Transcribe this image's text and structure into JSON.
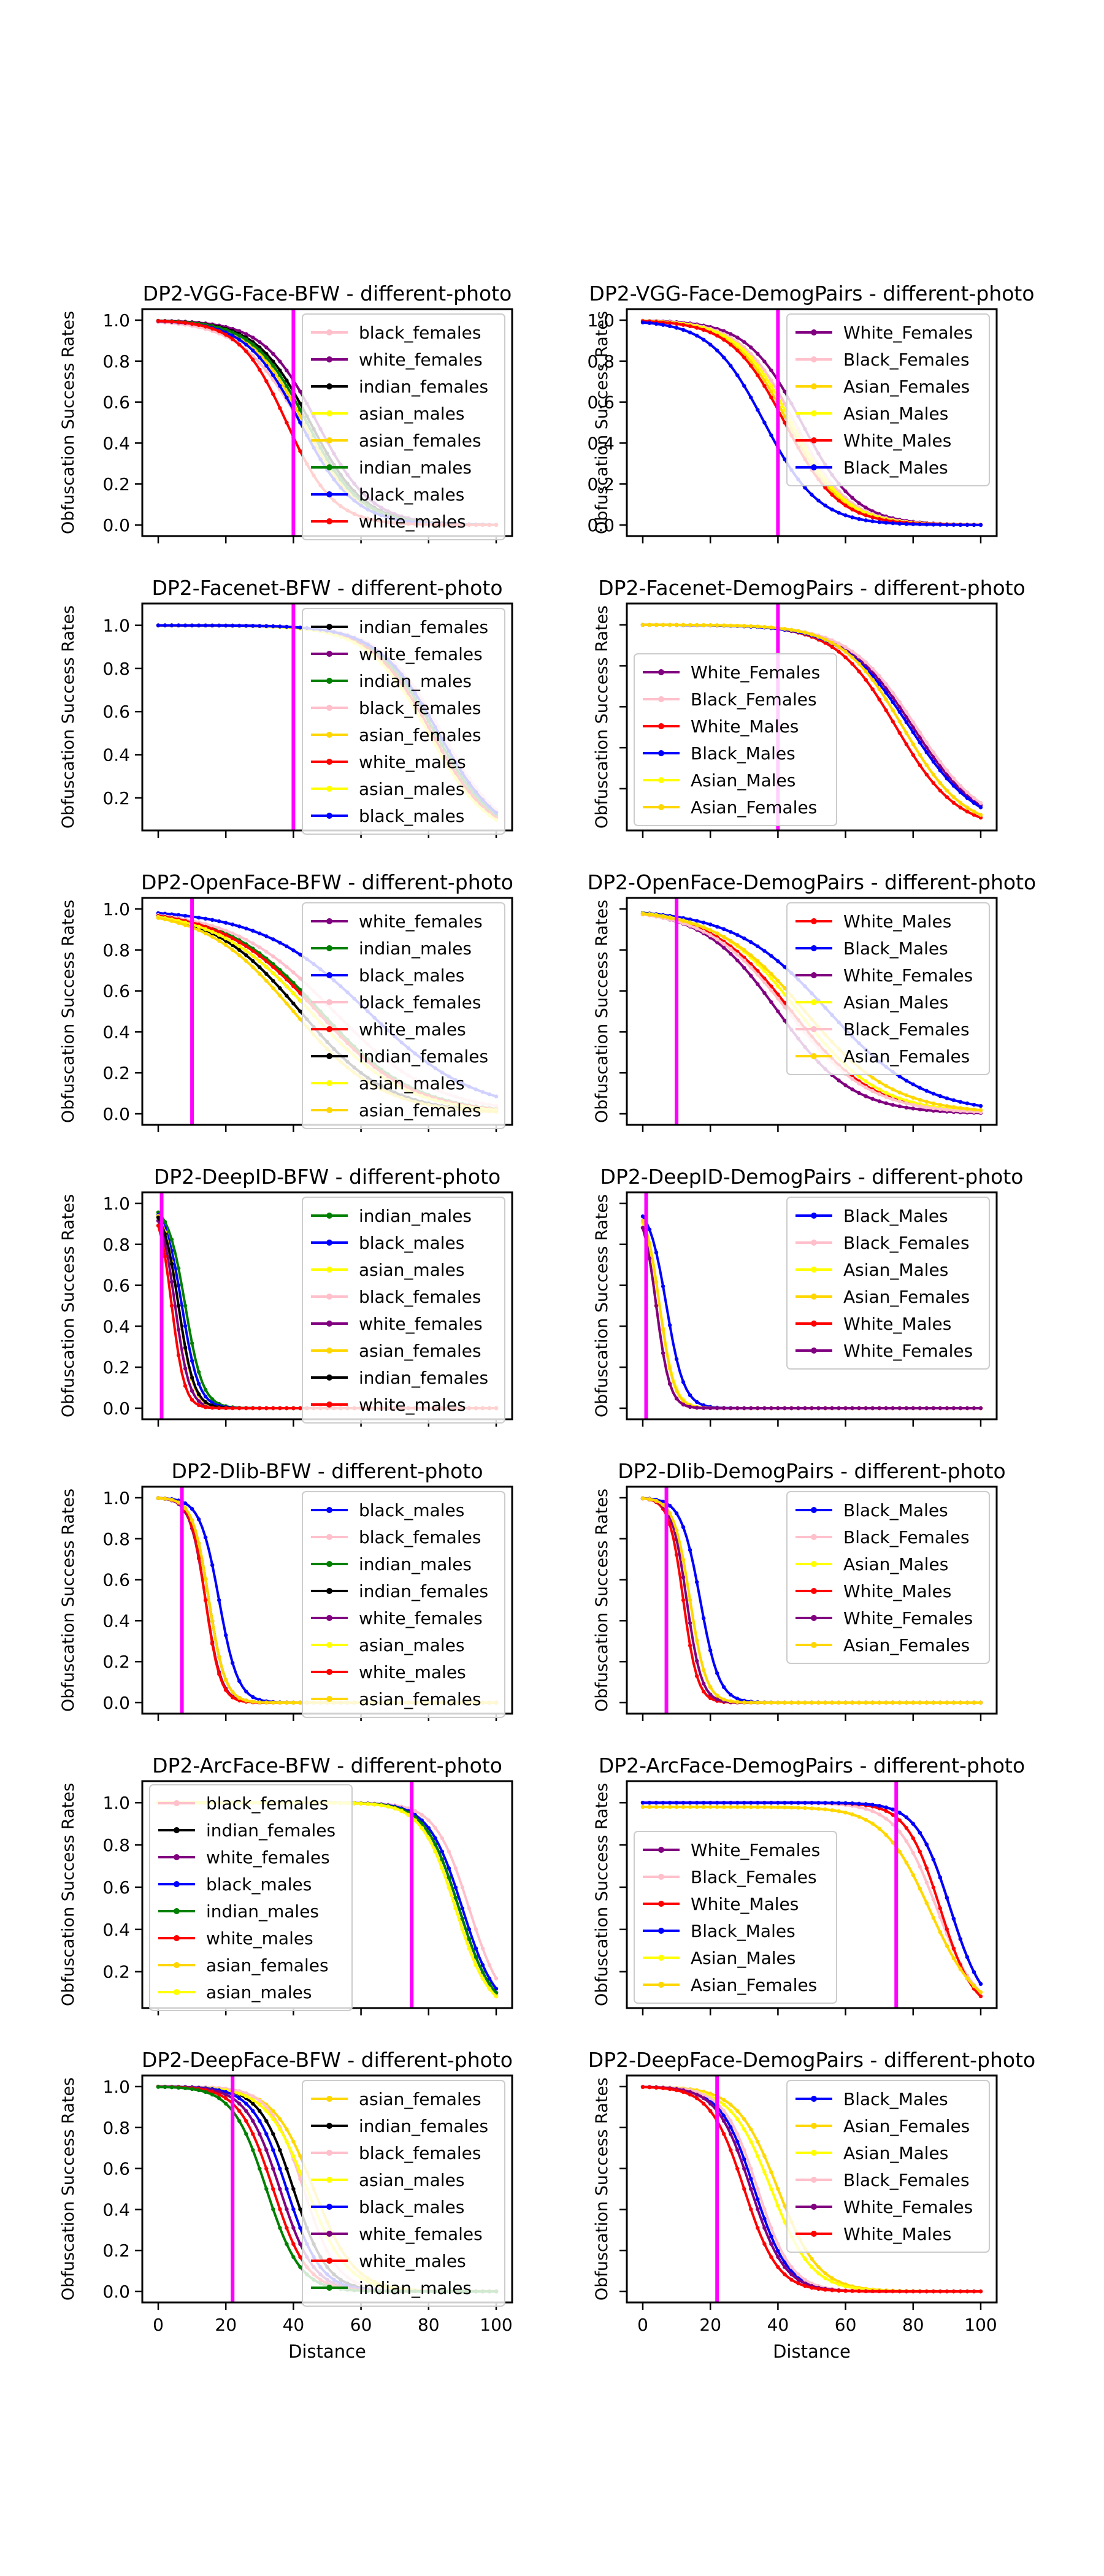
{
  "figure": {
    "xlabel": "Distance",
    "ylabel": "Obfuscation Success Rates"
  },
  "series_colors": {
    "black_females": "#ffc0cb",
    "white_females": "#800080",
    "indian_females": "#000000",
    "asian_males": "#ffff00",
    "asian_females": "#ffd700",
    "indian_males": "#008000",
    "black_males": "#0000ff",
    "white_males": "#ff0000",
    "White_Females": "#800080",
    "Black_Females": "#ffc0cb",
    "Asian_Females": "#ffd700",
    "Asian_Males": "#ffff00",
    "White_Males": "#ff0000",
    "Black_Males": "#0000ff"
  },
  "chart_data": [
    {
      "type": "line",
      "title": "DP2-VGG-Face-BFW - different-photo",
      "xlim": [
        0,
        100
      ],
      "ylim": [
        0,
        1
      ],
      "yticks": [
        "0.0",
        "0.2",
        "0.4",
        "0.6",
        "0.8",
        "1.0"
      ],
      "xticks": [
        "0",
        "20",
        "40",
        "60",
        "80",
        "100"
      ],
      "threshold_x": 40,
      "series": [
        {
          "name": "black_females",
          "mid": 42,
          "k": 9,
          "lo": 0,
          "hi": 1
        },
        {
          "name": "white_females",
          "mid": 47,
          "k": 8,
          "lo": 0,
          "hi": 1
        },
        {
          "name": "indian_females",
          "mid": 45,
          "k": 8,
          "lo": 0,
          "hi": 1
        },
        {
          "name": "asian_males",
          "mid": 44,
          "k": 8,
          "lo": 0,
          "hi": 1
        },
        {
          "name": "asian_females",
          "mid": 43,
          "k": 8,
          "lo": 0,
          "hi": 1
        },
        {
          "name": "indian_males",
          "mid": 44,
          "k": 8,
          "lo": 0,
          "hi": 1
        },
        {
          "name": "black_males",
          "mid": 42,
          "k": 8,
          "lo": 0,
          "hi": 1
        },
        {
          "name": "white_males",
          "mid": 38,
          "k": 7,
          "lo": 0,
          "hi": 1
        }
      ]
    },
    {
      "type": "line",
      "title": "DP2-VGG-Face-DemogPairs - different-photo",
      "xlim": [
        0,
        100
      ],
      "ylim": [
        0,
        1
      ],
      "yticks": [
        "0.0",
        "0.2",
        "0.4",
        "0.6",
        "0.8",
        "1.0"
      ],
      "xticks": [
        "0",
        "20",
        "40",
        "60",
        "80",
        "100"
      ],
      "threshold_x": 40,
      "series": [
        {
          "name": "White_Females",
          "mid": 47,
          "k": 8,
          "lo": 0,
          "hi": 1
        },
        {
          "name": "Black_Females",
          "mid": 45,
          "k": 8,
          "lo": 0,
          "hi": 1
        },
        {
          "name": "Asian_Females",
          "mid": 43,
          "k": 8,
          "lo": 0,
          "hi": 1
        },
        {
          "name": "Asian_Males",
          "mid": 44,
          "k": 8,
          "lo": 0,
          "hi": 1
        },
        {
          "name": "White_Males",
          "mid": 42,
          "k": 8,
          "lo": 0,
          "hi": 1
        },
        {
          "name": "Black_Males",
          "mid": 36,
          "k": 8,
          "lo": 0,
          "hi": 1
        }
      ]
    },
    {
      "type": "line",
      "title": "DP2-Facenet-BFW - different-photo",
      "xlim": [
        0,
        100
      ],
      "ylim": [
        0.1,
        1.05
      ],
      "yticks": [
        "0.2",
        "0.4",
        "0.6",
        "0.8",
        "1.0"
      ],
      "xticks": [
        "0",
        "20",
        "40",
        "60",
        "80",
        "100"
      ],
      "threshold_x": 40,
      "series": [
        {
          "name": "indian_females",
          "mid": 82,
          "k": 9,
          "lo": 0,
          "hi": 1
        },
        {
          "name": "white_females",
          "mid": 83,
          "k": 9,
          "lo": 0,
          "hi": 1
        },
        {
          "name": "indian_males",
          "mid": 82,
          "k": 9,
          "lo": 0,
          "hi": 1
        },
        {
          "name": "black_females",
          "mid": 84,
          "k": 9,
          "lo": 0,
          "hi": 1
        },
        {
          "name": "asian_females",
          "mid": 80,
          "k": 9,
          "lo": 0,
          "hi": 1
        },
        {
          "name": "white_males",
          "mid": 81,
          "k": 9,
          "lo": 0,
          "hi": 1
        },
        {
          "name": "asian_males",
          "mid": 80,
          "k": 9,
          "lo": 0,
          "hi": 1
        },
        {
          "name": "black_males",
          "mid": 83,
          "k": 9,
          "lo": 0,
          "hi": 1
        }
      ]
    },
    {
      "type": "line",
      "title": "DP2-Facenet-DemogPairs - different-photo",
      "xlim": [
        0,
        100
      ],
      "ylim": [
        0.05,
        1.05
      ],
      "yticks": [],
      "xticks": [
        "0",
        "20",
        "40",
        "60",
        "80",
        "100"
      ],
      "threshold_x": 40,
      "series": [
        {
          "name": "White_Females",
          "mid": 80,
          "k": 10,
          "lo": 0,
          "hi": 1
        },
        {
          "name": "Black_Females",
          "mid": 81,
          "k": 10,
          "lo": 0,
          "hi": 1
        },
        {
          "name": "White_Males",
          "mid": 75,
          "k": 9,
          "lo": 0,
          "hi": 1
        },
        {
          "name": "Black_Males",
          "mid": 79,
          "k": 10,
          "lo": 0,
          "hi": 1
        },
        {
          "name": "Asian_Males",
          "mid": 77,
          "k": 9,
          "lo": 0,
          "hi": 1
        },
        {
          "name": "Asian_Females",
          "mid": 77,
          "k": 9,
          "lo": 0,
          "hi": 1
        }
      ]
    },
    {
      "type": "line",
      "title": "DP2-OpenFace-BFW - different-photo",
      "xlim": [
        0,
        100
      ],
      "ylim": [
        0,
        1
      ],
      "yticks": [
        "0.0",
        "0.2",
        "0.4",
        "0.6",
        "0.8",
        "1.0"
      ],
      "xticks": [
        "0",
        "20",
        "40",
        "60",
        "80",
        "100"
      ],
      "threshold_x": 10,
      "series": [
        {
          "name": "white_females",
          "mid": 45,
          "k": 14,
          "lo": 0,
          "hi": 1
        },
        {
          "name": "indian_males",
          "mid": 48,
          "k": 14,
          "lo": 0,
          "hi": 1
        },
        {
          "name": "black_males",
          "mid": 62,
          "k": 16,
          "lo": 0,
          "hi": 1
        },
        {
          "name": "black_females",
          "mid": 52,
          "k": 15,
          "lo": 0,
          "hi": 1
        },
        {
          "name": "white_males",
          "mid": 47,
          "k": 14,
          "lo": 0,
          "hi": 1
        },
        {
          "name": "indian_females",
          "mid": 42,
          "k": 13,
          "lo": 0,
          "hi": 1
        },
        {
          "name": "asian_males",
          "mid": 45,
          "k": 14,
          "lo": 0,
          "hi": 1
        },
        {
          "name": "asian_females",
          "mid": 40,
          "k": 13,
          "lo": 0,
          "hi": 1
        }
      ]
    },
    {
      "type": "line",
      "title": "DP2-OpenFace-DemogPairs - different-photo",
      "xlim": [
        0,
        100
      ],
      "ylim": [
        0,
        1
      ],
      "yticks": [],
      "xticks": [
        "0",
        "20",
        "40",
        "60",
        "80",
        "100"
      ],
      "threshold_x": 10,
      "series": [
        {
          "name": "White_Males",
          "mid": 44,
          "k": 12,
          "lo": 0,
          "hi": 1
        },
        {
          "name": "Black_Males",
          "mid": 55,
          "k": 14,
          "lo": 0,
          "hi": 1
        },
        {
          "name": "White_Females",
          "mid": 40,
          "k": 11,
          "lo": 0,
          "hi": 1
        },
        {
          "name": "Asian_Males",
          "mid": 46,
          "k": 12,
          "lo": 0,
          "hi": 1
        },
        {
          "name": "Black_Females",
          "mid": 43,
          "k": 12,
          "lo": 0,
          "hi": 1
        },
        {
          "name": "Asian_Females",
          "mid": 48,
          "k": 13,
          "lo": 0,
          "hi": 1
        }
      ]
    },
    {
      "type": "line",
      "title": "DP2-DeepID-BFW - different-photo",
      "xlim": [
        0,
        100
      ],
      "ylim": [
        0,
        1
      ],
      "yticks": [
        "0.0",
        "0.2",
        "0.4",
        "0.6",
        "0.8",
        "1.0"
      ],
      "xticks": [
        "0",
        "20",
        "40",
        "60",
        "80",
        "100"
      ],
      "threshold_x": 1,
      "series": [
        {
          "name": "indian_males",
          "mid": 8,
          "k": 2.6,
          "lo": 0,
          "hi": 1
        },
        {
          "name": "black_males",
          "mid": 7,
          "k": 2.5,
          "lo": 0,
          "hi": 1
        },
        {
          "name": "asian_males",
          "mid": 6,
          "k": 2.3,
          "lo": 0,
          "hi": 1
        },
        {
          "name": "black_females",
          "mid": 6,
          "k": 2.2,
          "lo": 0,
          "hi": 1
        },
        {
          "name": "white_females",
          "mid": 5,
          "k": 2.1,
          "lo": 0,
          "hi": 1
        },
        {
          "name": "asian_females",
          "mid": 6,
          "k": 2.2,
          "lo": 0,
          "hi": 1
        },
        {
          "name": "indian_females",
          "mid": 6,
          "k": 2.3,
          "lo": 0,
          "hi": 1
        },
        {
          "name": "white_males",
          "mid": 4,
          "k": 1.9,
          "lo": 0,
          "hi": 1
        }
      ]
    },
    {
      "type": "line",
      "title": "DP2-DeepID-DemogPairs - different-photo",
      "xlim": [
        0,
        100
      ],
      "ylim": [
        0,
        1
      ],
      "yticks": [],
      "xticks": [
        "0",
        "20",
        "40",
        "60",
        "80",
        "100"
      ],
      "threshold_x": 1,
      "series": [
        {
          "name": "Black_Males",
          "mid": 7,
          "k": 2.6,
          "lo": 0,
          "hi": 1
        },
        {
          "name": "Black_Females",
          "mid": 5,
          "k": 2.2,
          "lo": 0,
          "hi": 1
        },
        {
          "name": "Asian_Males",
          "mid": 5,
          "k": 2.2,
          "lo": 0,
          "hi": 1
        },
        {
          "name": "Asian_Females",
          "mid": 5,
          "k": 2.1,
          "lo": 0,
          "hi": 1
        },
        {
          "name": "White_Males",
          "mid": 4,
          "k": 2.0,
          "lo": 0,
          "hi": 1
        },
        {
          "name": "White_Females",
          "mid": 4,
          "k": 2.0,
          "lo": 0,
          "hi": 1
        }
      ]
    },
    {
      "type": "line",
      "title": "DP2-Dlib-BFW - different-photo",
      "xlim": [
        0,
        100
      ],
      "ylim": [
        0,
        1
      ],
      "yticks": [
        "0.0",
        "0.2",
        "0.4",
        "0.6",
        "0.8",
        "1.0"
      ],
      "xticks": [
        "0",
        "20",
        "40",
        "60",
        "80",
        "100"
      ],
      "threshold_x": 7,
      "series": [
        {
          "name": "black_males",
          "mid": 18,
          "k": 2.8,
          "lo": 0,
          "hi": 1
        },
        {
          "name": "black_females",
          "mid": 15,
          "k": 2.4,
          "lo": 0,
          "hi": 1
        },
        {
          "name": "indian_males",
          "mid": 15,
          "k": 2.4,
          "lo": 0,
          "hi": 1
        },
        {
          "name": "indian_females",
          "mid": 15,
          "k": 2.4,
          "lo": 0,
          "hi": 1
        },
        {
          "name": "white_females",
          "mid": 14,
          "k": 2.3,
          "lo": 0,
          "hi": 1
        },
        {
          "name": "asian_males",
          "mid": 15,
          "k": 2.4,
          "lo": 0,
          "hi": 1
        },
        {
          "name": "white_males",
          "mid": 14,
          "k": 2.2,
          "lo": 0,
          "hi": 1
        },
        {
          "name": "asian_females",
          "mid": 15,
          "k": 2.4,
          "lo": 0,
          "hi": 1
        }
      ]
    },
    {
      "type": "line",
      "title": "DP2-Dlib-DemogPairs - different-photo",
      "xlim": [
        0,
        100
      ],
      "ylim": [
        0,
        1
      ],
      "yticks": [],
      "xticks": [
        "0",
        "20",
        "40",
        "60",
        "80",
        "100"
      ],
      "threshold_x": 7,
      "series": [
        {
          "name": "Black_Males",
          "mid": 17,
          "k": 2.8,
          "lo": 0,
          "hi": 1
        },
        {
          "name": "Black_Females",
          "mid": 14,
          "k": 2.4,
          "lo": 0,
          "hi": 1
        },
        {
          "name": "Asian_Males",
          "mid": 14,
          "k": 2.4,
          "lo": 0,
          "hi": 1
        },
        {
          "name": "White_Males",
          "mid": 12,
          "k": 2.1,
          "lo": 0,
          "hi": 1
        },
        {
          "name": "White_Females",
          "mid": 13,
          "k": 2.2,
          "lo": 0,
          "hi": 1
        },
        {
          "name": "Asian_Females",
          "mid": 14,
          "k": 2.4,
          "lo": 0,
          "hi": 1
        }
      ]
    },
    {
      "type": "line",
      "title": "DP2-ArcFace-BFW - different-photo",
      "xlim": [
        0,
        100
      ],
      "ylim": [
        0.08,
        1.05
      ],
      "yticks": [
        "0.2",
        "0.4",
        "0.6",
        "0.8",
        "1.0"
      ],
      "xticks": [
        "0",
        "20",
        "40",
        "60",
        "80",
        "100"
      ],
      "threshold_x": 75,
      "series": [
        {
          "name": "black_females",
          "mid": 92,
          "k": 5,
          "lo": 0,
          "hi": 1
        },
        {
          "name": "indian_females",
          "mid": 89,
          "k": 5,
          "lo": 0,
          "hi": 1
        },
        {
          "name": "white_females",
          "mid": 89,
          "k": 5,
          "lo": 0,
          "hi": 1
        },
        {
          "name": "black_males",
          "mid": 90,
          "k": 5,
          "lo": 0,
          "hi": 1
        },
        {
          "name": "indian_males",
          "mid": 89,
          "k": 5,
          "lo": 0,
          "hi": 1
        },
        {
          "name": "white_males",
          "mid": 88,
          "k": 5,
          "lo": 0,
          "hi": 1
        },
        {
          "name": "asian_females",
          "mid": 88,
          "k": 5,
          "lo": 0,
          "hi": 1
        },
        {
          "name": "asian_males",
          "mid": 88,
          "k": 5,
          "lo": 0,
          "hi": 1
        }
      ]
    },
    {
      "type": "line",
      "title": "DP2-ArcFace-DemogPairs - different-photo",
      "xlim": [
        0,
        100
      ],
      "ylim": [
        0.08,
        1.05
      ],
      "yticks": [],
      "xticks": [
        "0",
        "20",
        "40",
        "60",
        "80",
        "100"
      ],
      "threshold_x": 75,
      "series": [
        {
          "name": "White_Females",
          "mid": 91,
          "k": 5,
          "lo": 0,
          "hi": 1
        },
        {
          "name": "Black_Females",
          "mid": 87,
          "k": 6,
          "lo": 0,
          "hi": 1
        },
        {
          "name": "White_Males",
          "mid": 88,
          "k": 5,
          "lo": 0,
          "hi": 1
        },
        {
          "name": "Black_Males",
          "mid": 91,
          "k": 5,
          "lo": 0,
          "hi": 1
        },
        {
          "name": "Asian_Males",
          "mid": 85,
          "k": 7,
          "lo": 0,
          "hi": 0.98
        },
        {
          "name": "Asian_Females",
          "mid": 85,
          "k": 7,
          "lo": 0,
          "hi": 0.98
        }
      ]
    },
    {
      "type": "line",
      "title": "DP2-DeepFace-BFW - different-photo",
      "xlim": [
        0,
        100
      ],
      "ylim": [
        0,
        1
      ],
      "yticks": [
        "0.0",
        "0.2",
        "0.4",
        "0.6",
        "0.8",
        "1.0"
      ],
      "xticks": [
        "0",
        "20",
        "40",
        "60",
        "80",
        "100"
      ],
      "threshold_x": 22,
      "series": [
        {
          "name": "asian_females",
          "mid": 46,
          "k": 6,
          "lo": 0,
          "hi": 1
        },
        {
          "name": "indian_females",
          "mid": 40,
          "k": 5,
          "lo": 0,
          "hi": 1
        },
        {
          "name": "black_females",
          "mid": 43,
          "k": 5,
          "lo": 0,
          "hi": 1
        },
        {
          "name": "asian_males",
          "mid": 44,
          "k": 6,
          "lo": 0,
          "hi": 1
        },
        {
          "name": "black_males",
          "mid": 38,
          "k": 5,
          "lo": 0,
          "hi": 1
        },
        {
          "name": "white_females",
          "mid": 36,
          "k": 5,
          "lo": 0,
          "hi": 1
        },
        {
          "name": "white_males",
          "mid": 34,
          "k": 5,
          "lo": 0,
          "hi": 1
        },
        {
          "name": "indian_males",
          "mid": 32,
          "k": 5,
          "lo": 0,
          "hi": 1
        }
      ]
    },
    {
      "type": "line",
      "title": "DP2-DeepFace-DemogPairs - different-photo",
      "xlim": [
        0,
        100
      ],
      "ylim": [
        0,
        1
      ],
      "yticks": [],
      "xticks": [
        "0",
        "20",
        "40",
        "60",
        "80",
        "100"
      ],
      "threshold_x": 22,
      "series": [
        {
          "name": "Black_Males",
          "mid": 33,
          "k": 5,
          "lo": 0,
          "hi": 1
        },
        {
          "name": "Asian_Females",
          "mid": 40,
          "k": 6,
          "lo": 0,
          "hi": 1
        },
        {
          "name": "Asian_Males",
          "mid": 38,
          "k": 6,
          "lo": 0,
          "hi": 1
        },
        {
          "name": "Black_Females",
          "mid": 34,
          "k": 5,
          "lo": 0,
          "hi": 1
        },
        {
          "name": "White_Females",
          "mid": 32,
          "k": 5,
          "lo": 0,
          "hi": 1
        },
        {
          "name": "White_Males",
          "mid": 30,
          "k": 5,
          "lo": 0,
          "hi": 1
        }
      ]
    }
  ]
}
